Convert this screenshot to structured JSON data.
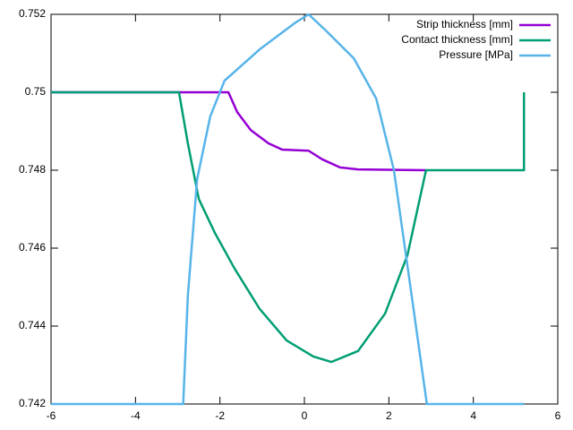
{
  "chart_data": {
    "type": "line",
    "xlim": [
      -6,
      6
    ],
    "xticks": [
      -6,
      -4,
      -2,
      0,
      2,
      4,
      6
    ],
    "ylim": [
      0.742,
      0.752
    ],
    "yticks": [
      0.742,
      0.744,
      0.746,
      0.748,
      0.75,
      0.752
    ],
    "legend": "top-right",
    "grid": false,
    "series": [
      {
        "name": "Strip thickness [mm]",
        "color": "#9400d3",
        "x": [
          -6,
          -1.8,
          -1.59,
          -1.27,
          -0.85,
          -0.53,
          0.1,
          0.42,
          0.85,
          1.27,
          2.88
        ],
        "values": [
          0.75,
          0.75,
          0.74949,
          0.74903,
          0.74869,
          0.74853,
          0.7485,
          0.74828,
          0.74807,
          0.74802,
          0.748
        ]
      },
      {
        "name": "Contact thickness [mm]",
        "color": "#009e73",
        "x": [
          -6,
          -2.97,
          -2.76,
          -2.5,
          -2.12,
          -1.65,
          -1.06,
          -0.42,
          0.21,
          0.64,
          1.27,
          1.91,
          2.44,
          2.88,
          5.2,
          5.2
        ],
        "values": [
          0.75,
          0.75,
          0.74869,
          0.74726,
          0.74639,
          0.74547,
          0.74444,
          0.74363,
          0.74322,
          0.74308,
          0.74336,
          0.74432,
          0.74582,
          0.748,
          0.748,
          0.75
        ]
      },
      {
        "name": "Pressure [MPa]",
        "color": "#56b4e9",
        "x": [
          -6,
          -2.87,
          -2.76,
          -2.54,
          -2.23,
          -1.89,
          -1.06,
          -0.21,
          0.1,
          0.53,
          1.17,
          1.7,
          2.12,
          2.54,
          2.9,
          5.2
        ],
        "values": [
          0.742,
          0.742,
          0.74478,
          0.74777,
          0.74938,
          0.7503,
          0.7511,
          0.75179,
          0.752,
          0.75156,
          0.75087,
          0.74984,
          0.748,
          0.74478,
          0.742,
          0.742
        ]
      }
    ]
  }
}
